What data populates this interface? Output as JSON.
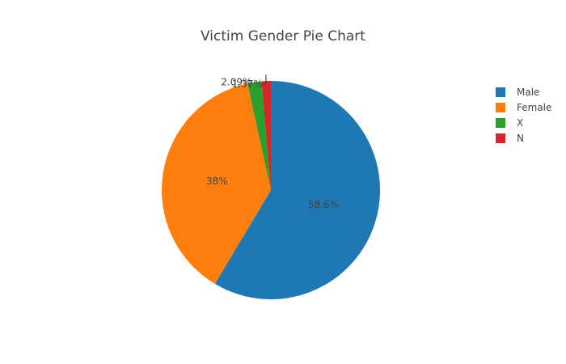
{
  "chart_data": {
    "type": "pie",
    "title": "Victim Gender Pie Chart",
    "categories": [
      "Male",
      "Female",
      "X",
      "N"
    ],
    "values": [
      58.6,
      38,
      2.09,
      1.37
    ],
    "labels": [
      "58.6%",
      "38%",
      "2.09%",
      "1.37%"
    ],
    "colors": [
      "#1f77b4",
      "#ff7f0e",
      "#2ca02c",
      "#d62728"
    ],
    "legend_position": "top-right",
    "direction": "clockwise",
    "start_angle": "top"
  }
}
